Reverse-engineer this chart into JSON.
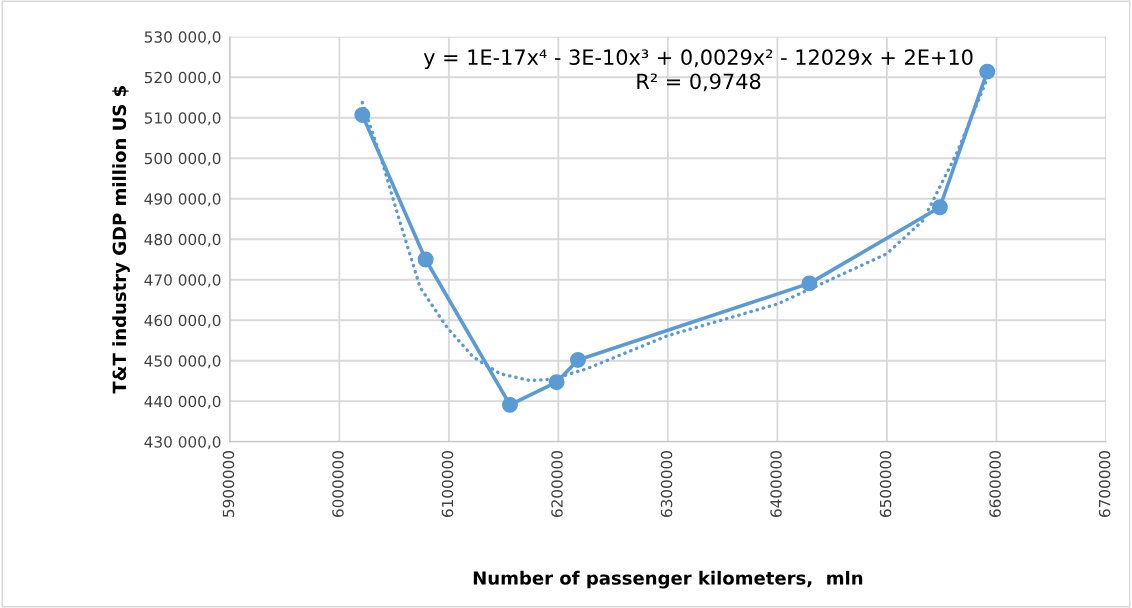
{
  "chart_data": {
    "type": "line",
    "xlabel": "Number of passenger kilometers,  mln",
    "ylabel": "T&T industry GDP million US $",
    "annotations": [
      "y = 1E-17x⁴ - 3E-10x³ + 0,0029x² - 12029x + 2E+10\nR² = 0,9748"
    ],
    "xlim": [
      5900000,
      6700000
    ],
    "xticks": [
      5900000,
      6000000,
      6100000,
      6200000,
      6300000,
      6400000,
      6500000,
      6600000,
      6700000
    ],
    "ylim": [
      430000,
      530000
    ],
    "yticks": [
      {
        "value": 430000,
        "label": "430 000,0"
      },
      {
        "value": 440000,
        "label": "440 000,0"
      },
      {
        "value": 450000,
        "label": "450 000,0"
      },
      {
        "value": 460000,
        "label": "460 000,0"
      },
      {
        "value": 470000,
        "label": "470 000,0"
      },
      {
        "value": 480000,
        "label": "480 000,0"
      },
      {
        "value": 490000,
        "label": "490 000,0"
      },
      {
        "value": 500000,
        "label": "500 000,0"
      },
      {
        "value": 510000,
        "label": "510 000,0"
      },
      {
        "value": 520000,
        "label": "520 000,0"
      },
      {
        "value": 530000,
        "label": "530 000,0"
      }
    ],
    "grid": true,
    "legend": false,
    "series": [
      {
        "color": "#5b9bd5",
        "marker": "circle",
        "line_style": "solid",
        "x": [
          6021000,
          6078800,
          6155800,
          6198400,
          6217900,
          6429200,
          6548400,
          6591600
        ],
        "values": [
          510700,
          475000,
          439100,
          444700,
          450200,
          469100,
          487900,
          521400
        ]
      },
      {
        "color": "#5b9bd5",
        "marker": "none",
        "line_style": "dotted",
        "x": [
          6021000,
          6037000,
          6055000,
          6073800,
          6098100,
          6122400,
          6146700,
          6174100,
          6195300,
          6225800,
          6300000,
          6400000,
          6499700,
          6532900,
          6563300,
          6578500,
          6590700
        ],
        "values": [
          513800,
          501000,
          484600,
          468100,
          458300,
          450900,
          446800,
          445100,
          445500,
          448000,
          456200,
          464000,
          476400,
          484600,
          501000,
          510900,
          519100
        ]
      }
    ]
  }
}
